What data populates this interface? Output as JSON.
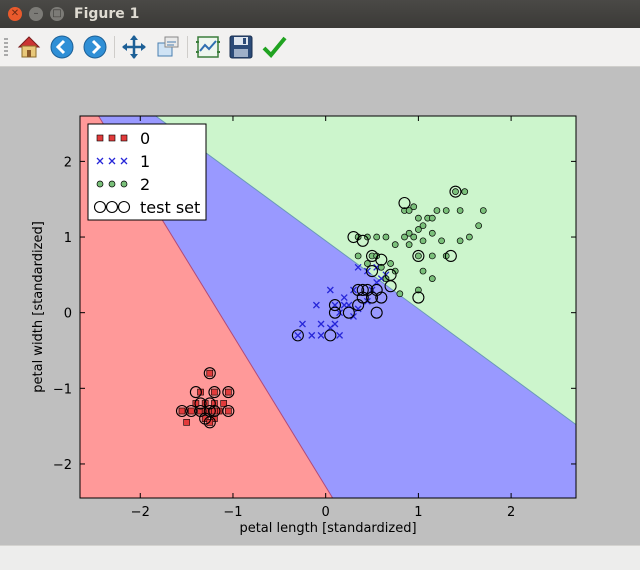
{
  "window": {
    "title": "Figure 1"
  },
  "toolbar": {
    "buttons": [
      {
        "name": "home-button",
        "icon": "home-icon"
      },
      {
        "name": "back-button",
        "icon": "back-arrow-icon"
      },
      {
        "name": "forward-button",
        "icon": "forward-arrow-icon"
      },
      {
        "name": "pan-button",
        "icon": "pan-move-icon"
      },
      {
        "name": "zoom-button",
        "icon": "zoom-rect-icon"
      },
      {
        "name": "configure-subplots-button",
        "icon": "subplots-icon"
      },
      {
        "name": "save-button",
        "icon": "floppy-disk-icon"
      },
      {
        "name": "edit-axes-button",
        "icon": "checkmark-icon"
      }
    ]
  },
  "chart_data": {
    "type": "scatter",
    "xlabel": "petal length [standardized]",
    "ylabel": "petal width [standardized]",
    "xlim": [
      -2.65,
      2.7
    ],
    "ylim": [
      -2.45,
      2.6
    ],
    "xticks": [
      -2,
      -1,
      0,
      1,
      2
    ],
    "yticks": [
      -2,
      -1,
      0,
      1,
      2
    ],
    "xtick_labels": [
      "−2",
      "−1",
      "0",
      "1",
      "2"
    ],
    "ytick_labels": [
      "−2",
      "−1",
      "0",
      "1",
      "2"
    ],
    "legend": {
      "placement": "top-left",
      "entries": [
        "0",
        "1",
        "2",
        "test set"
      ]
    },
    "decision_regions": [
      {
        "class": "0",
        "color": "#ff9999"
      },
      {
        "class": "1",
        "color": "#9999ff"
      },
      {
        "class": "2",
        "color": "#ccf5cc"
      }
    ],
    "series": [
      {
        "name": "0",
        "marker": "square",
        "color": "#e23b3b",
        "points": [
          [
            -1.25,
            -0.8
          ],
          [
            -1.35,
            -1.05
          ],
          [
            -1.2,
            -1.05
          ],
          [
            -1.05,
            -1.05
          ],
          [
            -1.4,
            -1.2
          ],
          [
            -1.3,
            -1.2
          ],
          [
            -1.2,
            -1.2
          ],
          [
            -1.1,
            -1.2
          ],
          [
            -1.45,
            -1.3
          ],
          [
            -1.35,
            -1.3
          ],
          [
            -1.25,
            -1.3
          ],
          [
            -1.15,
            -1.3
          ],
          [
            -1.05,
            -1.3
          ],
          [
            -1.55,
            -1.3
          ],
          [
            -1.3,
            -1.4
          ],
          [
            -1.2,
            -1.4
          ],
          [
            -1.5,
            -1.45
          ],
          [
            -1.25,
            -1.45
          ],
          [
            -1.3,
            -1.3
          ],
          [
            -1.2,
            -1.3
          ]
        ]
      },
      {
        "name": "1",
        "marker": "x",
        "color": "#2727d8",
        "points": [
          [
            -0.25,
            -0.15
          ],
          [
            -0.3,
            -0.3
          ],
          [
            -0.15,
            -0.3
          ],
          [
            -0.05,
            -0.3
          ],
          [
            0.05,
            -0.2
          ],
          [
            0.1,
            -0.15
          ],
          [
            -0.05,
            -0.15
          ],
          [
            0.15,
            -0.3
          ],
          [
            -0.1,
            0.1
          ],
          [
            0.1,
            0.1
          ],
          [
            0.2,
            0.2
          ],
          [
            0.3,
            0.3
          ],
          [
            0.25,
            0.1
          ],
          [
            0.35,
            0.05
          ],
          [
            0.45,
            0.15
          ],
          [
            0.5,
            0.3
          ],
          [
            0.55,
            0.4
          ],
          [
            0.6,
            0.45
          ],
          [
            0.65,
            0.5
          ],
          [
            0.35,
            0.6
          ],
          [
            0.45,
            0.55
          ],
          [
            0.55,
            0.6
          ],
          [
            0.2,
            0.1
          ],
          [
            0.3,
            -0.05
          ],
          [
            0.15,
            0.0
          ],
          [
            0.05,
            0.3
          ]
        ]
      },
      {
        "name": "2",
        "marker": "circle",
        "color": "#7ac07a",
        "points": [
          [
            0.35,
            0.75
          ],
          [
            0.45,
            0.65
          ],
          [
            0.5,
            0.75
          ],
          [
            0.55,
            0.75
          ],
          [
            0.6,
            0.6
          ],
          [
            0.65,
            0.45
          ],
          [
            0.35,
            1.0
          ],
          [
            0.45,
            1.0
          ],
          [
            0.55,
            1.0
          ],
          [
            0.65,
            1.0
          ],
          [
            0.75,
            0.9
          ],
          [
            0.85,
            1.0
          ],
          [
            0.9,
            1.05
          ],
          [
            0.95,
            1.0
          ],
          [
            0.9,
            0.9
          ],
          [
            1.0,
            1.1
          ],
          [
            1.05,
            1.15
          ],
          [
            1.0,
            1.25
          ],
          [
            1.1,
            1.25
          ],
          [
            0.85,
            1.35
          ],
          [
            0.9,
            1.35
          ],
          [
            0.95,
            1.4
          ],
          [
            1.15,
            1.25
          ],
          [
            1.2,
            1.35
          ],
          [
            1.3,
            1.35
          ],
          [
            1.45,
            1.35
          ],
          [
            1.4,
            1.6
          ],
          [
            1.5,
            1.6
          ],
          [
            1.7,
            1.35
          ],
          [
            1.65,
            1.15
          ],
          [
            1.55,
            1.0
          ],
          [
            1.45,
            0.95
          ],
          [
            1.25,
            0.95
          ],
          [
            1.15,
            1.05
          ],
          [
            1.05,
            0.95
          ],
          [
            1.0,
            0.75
          ],
          [
            1.05,
            0.55
          ],
          [
            1.15,
            0.45
          ],
          [
            1.3,
            0.75
          ],
          [
            1.15,
            0.75
          ],
          [
            1.0,
            0.3
          ],
          [
            0.8,
            0.25
          ],
          [
            0.75,
            0.55
          ],
          [
            0.7,
            0.65
          ]
        ]
      },
      {
        "name": "test set",
        "marker": "open-circle",
        "color": "#000000",
        "points": [
          [
            -1.25,
            -0.8
          ],
          [
            -1.4,
            -1.05
          ],
          [
            -1.2,
            -1.05
          ],
          [
            -1.35,
            -1.2
          ],
          [
            -1.25,
            -1.2
          ],
          [
            -1.45,
            -1.3
          ],
          [
            -1.35,
            -1.3
          ],
          [
            -1.25,
            -1.3
          ],
          [
            -1.55,
            -1.3
          ],
          [
            -1.3,
            -1.4
          ],
          [
            -1.2,
            -1.3
          ],
          [
            -1.25,
            -1.45
          ],
          [
            -1.05,
            -1.05
          ],
          [
            -1.05,
            -1.3
          ],
          [
            -0.3,
            -0.3
          ],
          [
            0.05,
            -0.3
          ],
          [
            0.1,
            -0.0
          ],
          [
            0.1,
            0.1
          ],
          [
            0.25,
            0.0
          ],
          [
            0.35,
            0.1
          ],
          [
            0.4,
            0.2
          ],
          [
            0.45,
            0.3
          ],
          [
            0.5,
            0.2
          ],
          [
            0.55,
            0.3
          ],
          [
            0.6,
            0.2
          ],
          [
            0.35,
            0.3
          ],
          [
            0.55,
            0.0
          ],
          [
            0.7,
            0.5
          ],
          [
            0.7,
            0.35
          ],
          [
            0.5,
            0.55
          ],
          [
            0.4,
            0.3
          ],
          [
            0.3,
            1.0
          ],
          [
            0.4,
            0.95
          ],
          [
            0.5,
            0.75
          ],
          [
            0.6,
            0.7
          ],
          [
            1.0,
            0.2
          ],
          [
            1.0,
            0.75
          ],
          [
            1.35,
            0.75
          ],
          [
            0.85,
            1.45
          ],
          [
            1.4,
            1.6
          ]
        ]
      }
    ]
  }
}
